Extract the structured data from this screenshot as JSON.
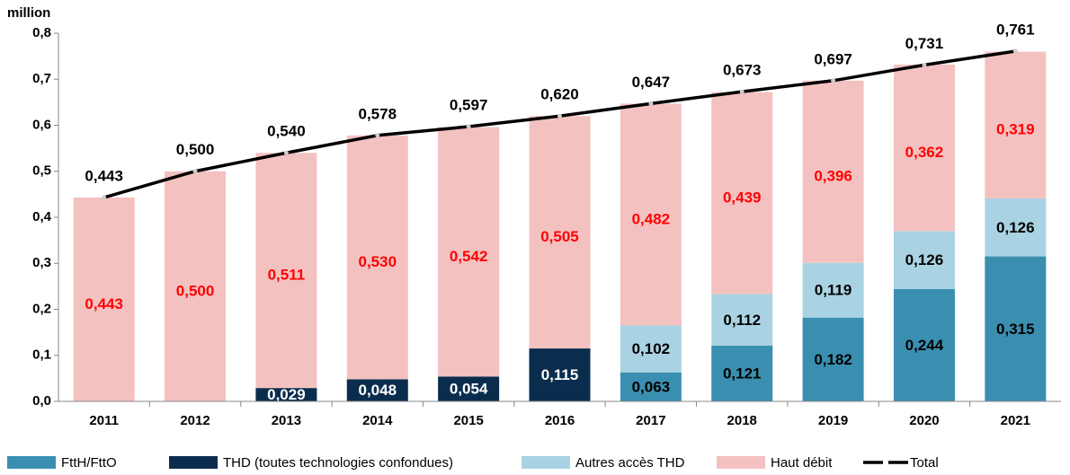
{
  "chart_data": {
    "type": "stacked_bar",
    "y_label": "million",
    "categories": [
      "2011",
      "2012",
      "2013",
      "2014",
      "2015",
      "2016",
      "2017",
      "2018",
      "2019",
      "2020",
      "2021"
    ],
    "ylim": [
      0,
      0.8
    ],
    "yticks": [
      {
        "value": 0,
        "label": "0,0"
      },
      {
        "value": 0.1,
        "label": "0,1"
      },
      {
        "value": 0.2,
        "label": "0,2"
      },
      {
        "value": 0.3,
        "label": "0,3"
      },
      {
        "value": 0.4,
        "label": "0,4"
      },
      {
        "value": 0.5,
        "label": "0,5"
      },
      {
        "value": 0.6,
        "label": "0,6"
      },
      {
        "value": 0.7,
        "label": "0,7"
      },
      {
        "value": 0.8,
        "label": "0,8"
      }
    ],
    "series": [
      {
        "name": "FttH/FttO",
        "color": "#3a8fb0",
        "label_color": "#000000",
        "values": [
          null,
          null,
          null,
          null,
          null,
          null,
          0.063,
          0.121,
          0.182,
          0.244,
          0.315
        ],
        "value_labels": [
          null,
          null,
          null,
          null,
          null,
          null,
          "0,063",
          "0,121",
          "0,182",
          "0,244",
          "0,315"
        ]
      },
      {
        "name": "THD (toutes technologies confondues)",
        "color": "#0b2d4d",
        "label_color": "#ffffff",
        "values": [
          null,
          null,
          0.029,
          0.048,
          0.054,
          0.115,
          null,
          null,
          null,
          null,
          null
        ],
        "value_labels": [
          null,
          null,
          "0,029",
          "0,048",
          "0,054",
          "0,115",
          null,
          null,
          null,
          null,
          null
        ]
      },
      {
        "name": "Autres accès THD",
        "color": "#a9d3e2",
        "label_color": "#000000",
        "values": [
          null,
          null,
          null,
          null,
          null,
          null,
          0.102,
          0.112,
          0.119,
          0.126,
          0.126
        ],
        "value_labels": [
          null,
          null,
          null,
          null,
          null,
          null,
          "0,102",
          "0,112",
          "0,119",
          "0,126",
          "0,126"
        ]
      },
      {
        "name": "Haut débit",
        "color": "#f4c1c1",
        "label_color": "#ff0000",
        "values": [
          0.443,
          0.5,
          0.511,
          0.53,
          0.542,
          0.505,
          0.482,
          0.439,
          0.396,
          0.362,
          0.319
        ],
        "value_labels": [
          "0,443",
          "0,500",
          "0,511",
          "0,530",
          "0,542",
          "0,505",
          "0,482",
          "0,439",
          "0,396",
          "0,362",
          "0,319"
        ]
      }
    ],
    "total": {
      "name": "Total",
      "color": "#000000",
      "values": [
        0.443,
        0.5,
        0.54,
        0.578,
        0.597,
        0.62,
        0.647,
        0.673,
        0.697,
        0.731,
        0.761
      ],
      "value_labels": [
        "0,443",
        "0,500",
        "0,540",
        "0,578",
        "0,597",
        "0,620",
        "0,647",
        "0,673",
        "0,697",
        "0,731",
        "0,761"
      ]
    }
  }
}
